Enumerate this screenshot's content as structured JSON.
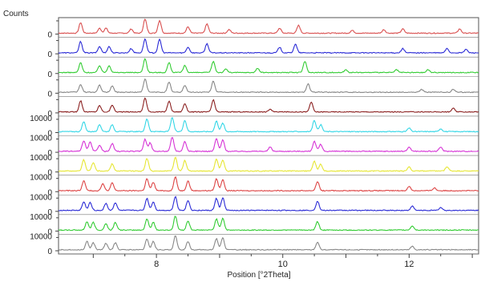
{
  "chart_data": {
    "type": "line",
    "title": "",
    "ylabel": "Counts",
    "xlabel": "Position [°2Theta]",
    "xlim": [
      6.45,
      13.1
    ],
    "x_ticks": [
      8,
      10,
      12
    ],
    "x_tick_labels": [
      "8",
      "10",
      "12"
    ],
    "stacked": true,
    "panel_count": 12,
    "panel_ytick_labels": [
      "0",
      "0",
      "0",
      "0",
      "0",
      "10000 0",
      "10000 0",
      "10000 0",
      "10000 0",
      "10000 0",
      "10000 0",
      "10000 0"
    ],
    "grid": false,
    "legend": "none",
    "series": [
      {
        "color": "#d94f4f",
        "peaks": [
          [
            6.8,
            0.75
          ],
          [
            7.1,
            0.35
          ],
          [
            7.2,
            0.35
          ],
          [
            7.6,
            0.3
          ],
          [
            7.82,
            1.0
          ],
          [
            8.05,
            0.9
          ],
          [
            8.5,
            0.45
          ],
          [
            8.8,
            0.65
          ],
          [
            9.15,
            0.25
          ],
          [
            9.95,
            0.35
          ],
          [
            10.25,
            0.55
          ],
          [
            11.1,
            0.2
          ],
          [
            11.6,
            0.25
          ],
          [
            11.9,
            0.3
          ],
          [
            12.8,
            0.3
          ]
        ]
      },
      {
        "color": "#2b2bd6",
        "peaks": [
          [
            6.8,
            0.8
          ],
          [
            7.1,
            0.45
          ],
          [
            7.25,
            0.45
          ],
          [
            7.6,
            0.3
          ],
          [
            7.82,
            1.0
          ],
          [
            8.05,
            0.95
          ],
          [
            8.5,
            0.4
          ],
          [
            8.8,
            0.65
          ],
          [
            9.95,
            0.4
          ],
          [
            10.2,
            0.6
          ],
          [
            11.9,
            0.3
          ],
          [
            12.6,
            0.3
          ],
          [
            12.9,
            0.25
          ]
        ]
      },
      {
        "color": "#33cc33",
        "peaks": [
          [
            6.8,
            0.7
          ],
          [
            7.1,
            0.5
          ],
          [
            7.25,
            0.5
          ],
          [
            7.82,
            1.0
          ],
          [
            8.2,
            0.7
          ],
          [
            8.45,
            0.5
          ],
          [
            8.9,
            0.8
          ],
          [
            9.1,
            0.25
          ],
          [
            9.6,
            0.3
          ],
          [
            10.35,
            0.8
          ],
          [
            11.0,
            0.2
          ],
          [
            11.8,
            0.2
          ],
          [
            12.3,
            0.2
          ]
        ]
      },
      {
        "color": "#888888",
        "peaks": [
          [
            6.8,
            0.55
          ],
          [
            7.1,
            0.5
          ],
          [
            7.3,
            0.45
          ],
          [
            7.82,
            0.95
          ],
          [
            8.2,
            0.7
          ],
          [
            8.45,
            0.5
          ],
          [
            8.9,
            0.8
          ],
          [
            10.4,
            0.6
          ],
          [
            12.2,
            0.2
          ],
          [
            12.7,
            0.2
          ]
        ]
      },
      {
        "color": "#8b2020",
        "peaks": [
          [
            6.8,
            0.8
          ],
          [
            7.1,
            0.45
          ],
          [
            7.3,
            0.5
          ],
          [
            7.82,
            1.0
          ],
          [
            8.2,
            0.75
          ],
          [
            8.45,
            0.6
          ],
          [
            8.9,
            0.85
          ],
          [
            9.8,
            0.2
          ],
          [
            10.45,
            0.7
          ],
          [
            12.7,
            0.25
          ]
        ]
      },
      {
        "color": "#33d6e6",
        "peaks": [
          [
            6.85,
            0.7
          ],
          [
            7.1,
            0.5
          ],
          [
            7.3,
            0.5
          ],
          [
            7.85,
            0.9
          ],
          [
            8.25,
            1.0
          ],
          [
            8.45,
            0.8
          ],
          [
            8.95,
            0.75
          ],
          [
            9.05,
            0.6
          ],
          [
            10.5,
            0.8
          ],
          [
            10.6,
            0.5
          ],
          [
            12.0,
            0.25
          ],
          [
            12.5,
            0.2
          ]
        ]
      },
      {
        "color": "#d633d6",
        "peaks": [
          [
            6.85,
            0.75
          ],
          [
            6.95,
            0.65
          ],
          [
            7.1,
            0.45
          ],
          [
            7.3,
            0.55
          ],
          [
            7.82,
            0.85
          ],
          [
            7.9,
            0.6
          ],
          [
            8.25,
            1.0
          ],
          [
            8.45,
            0.7
          ],
          [
            8.95,
            0.9
          ],
          [
            9.05,
            0.8
          ],
          [
            9.8,
            0.3
          ],
          [
            10.5,
            0.7
          ],
          [
            10.6,
            0.5
          ],
          [
            12.0,
            0.3
          ],
          [
            12.5,
            0.3
          ]
        ]
      },
      {
        "color": "#e6e633",
        "peaks": [
          [
            6.85,
            0.8
          ],
          [
            7.0,
            0.6
          ],
          [
            7.3,
            0.5
          ],
          [
            7.85,
            0.9
          ],
          [
            8.3,
            1.0
          ],
          [
            8.45,
            0.75
          ],
          [
            8.95,
            0.85
          ],
          [
            9.05,
            0.8
          ],
          [
            10.5,
            0.7
          ],
          [
            10.6,
            0.5
          ],
          [
            12.0,
            0.3
          ],
          [
            12.6,
            0.3
          ]
        ]
      },
      {
        "color": "#dd4444",
        "peaks": [
          [
            6.85,
            0.7
          ],
          [
            7.15,
            0.5
          ],
          [
            7.3,
            0.55
          ],
          [
            7.85,
            0.85
          ],
          [
            7.95,
            0.6
          ],
          [
            8.3,
            1.0
          ],
          [
            8.5,
            0.7
          ],
          [
            8.95,
            0.85
          ],
          [
            9.05,
            0.8
          ],
          [
            10.55,
            0.65
          ],
          [
            12.0,
            0.3
          ],
          [
            12.4,
            0.2
          ]
        ]
      },
      {
        "color": "#2b2bd6",
        "peaks": [
          [
            6.85,
            0.6
          ],
          [
            6.95,
            0.55
          ],
          [
            7.2,
            0.5
          ],
          [
            7.35,
            0.55
          ],
          [
            7.85,
            0.85
          ],
          [
            7.95,
            0.6
          ],
          [
            8.3,
            1.0
          ],
          [
            8.5,
            0.7
          ],
          [
            8.95,
            0.85
          ],
          [
            9.05,
            0.9
          ],
          [
            10.55,
            0.65
          ],
          [
            12.05,
            0.3
          ],
          [
            12.5,
            0.2
          ]
        ]
      },
      {
        "color": "#33cc33",
        "peaks": [
          [
            6.9,
            0.6
          ],
          [
            7.0,
            0.55
          ],
          [
            7.2,
            0.45
          ],
          [
            7.35,
            0.55
          ],
          [
            7.85,
            0.8
          ],
          [
            7.95,
            0.55
          ],
          [
            8.3,
            1.0
          ],
          [
            8.5,
            0.65
          ],
          [
            8.95,
            0.8
          ],
          [
            9.05,
            0.85
          ],
          [
            10.55,
            0.6
          ],
          [
            12.05,
            0.3
          ]
        ]
      },
      {
        "color": "#888888",
        "peaks": [
          [
            6.9,
            0.6
          ],
          [
            7.0,
            0.5
          ],
          [
            7.2,
            0.45
          ],
          [
            7.35,
            0.5
          ],
          [
            7.85,
            0.75
          ],
          [
            7.95,
            0.6
          ],
          [
            8.3,
            1.0
          ],
          [
            8.5,
            0.6
          ],
          [
            8.95,
            0.8
          ],
          [
            9.05,
            0.85
          ],
          [
            10.55,
            0.55
          ],
          [
            12.05,
            0.25
          ]
        ]
      }
    ]
  }
}
